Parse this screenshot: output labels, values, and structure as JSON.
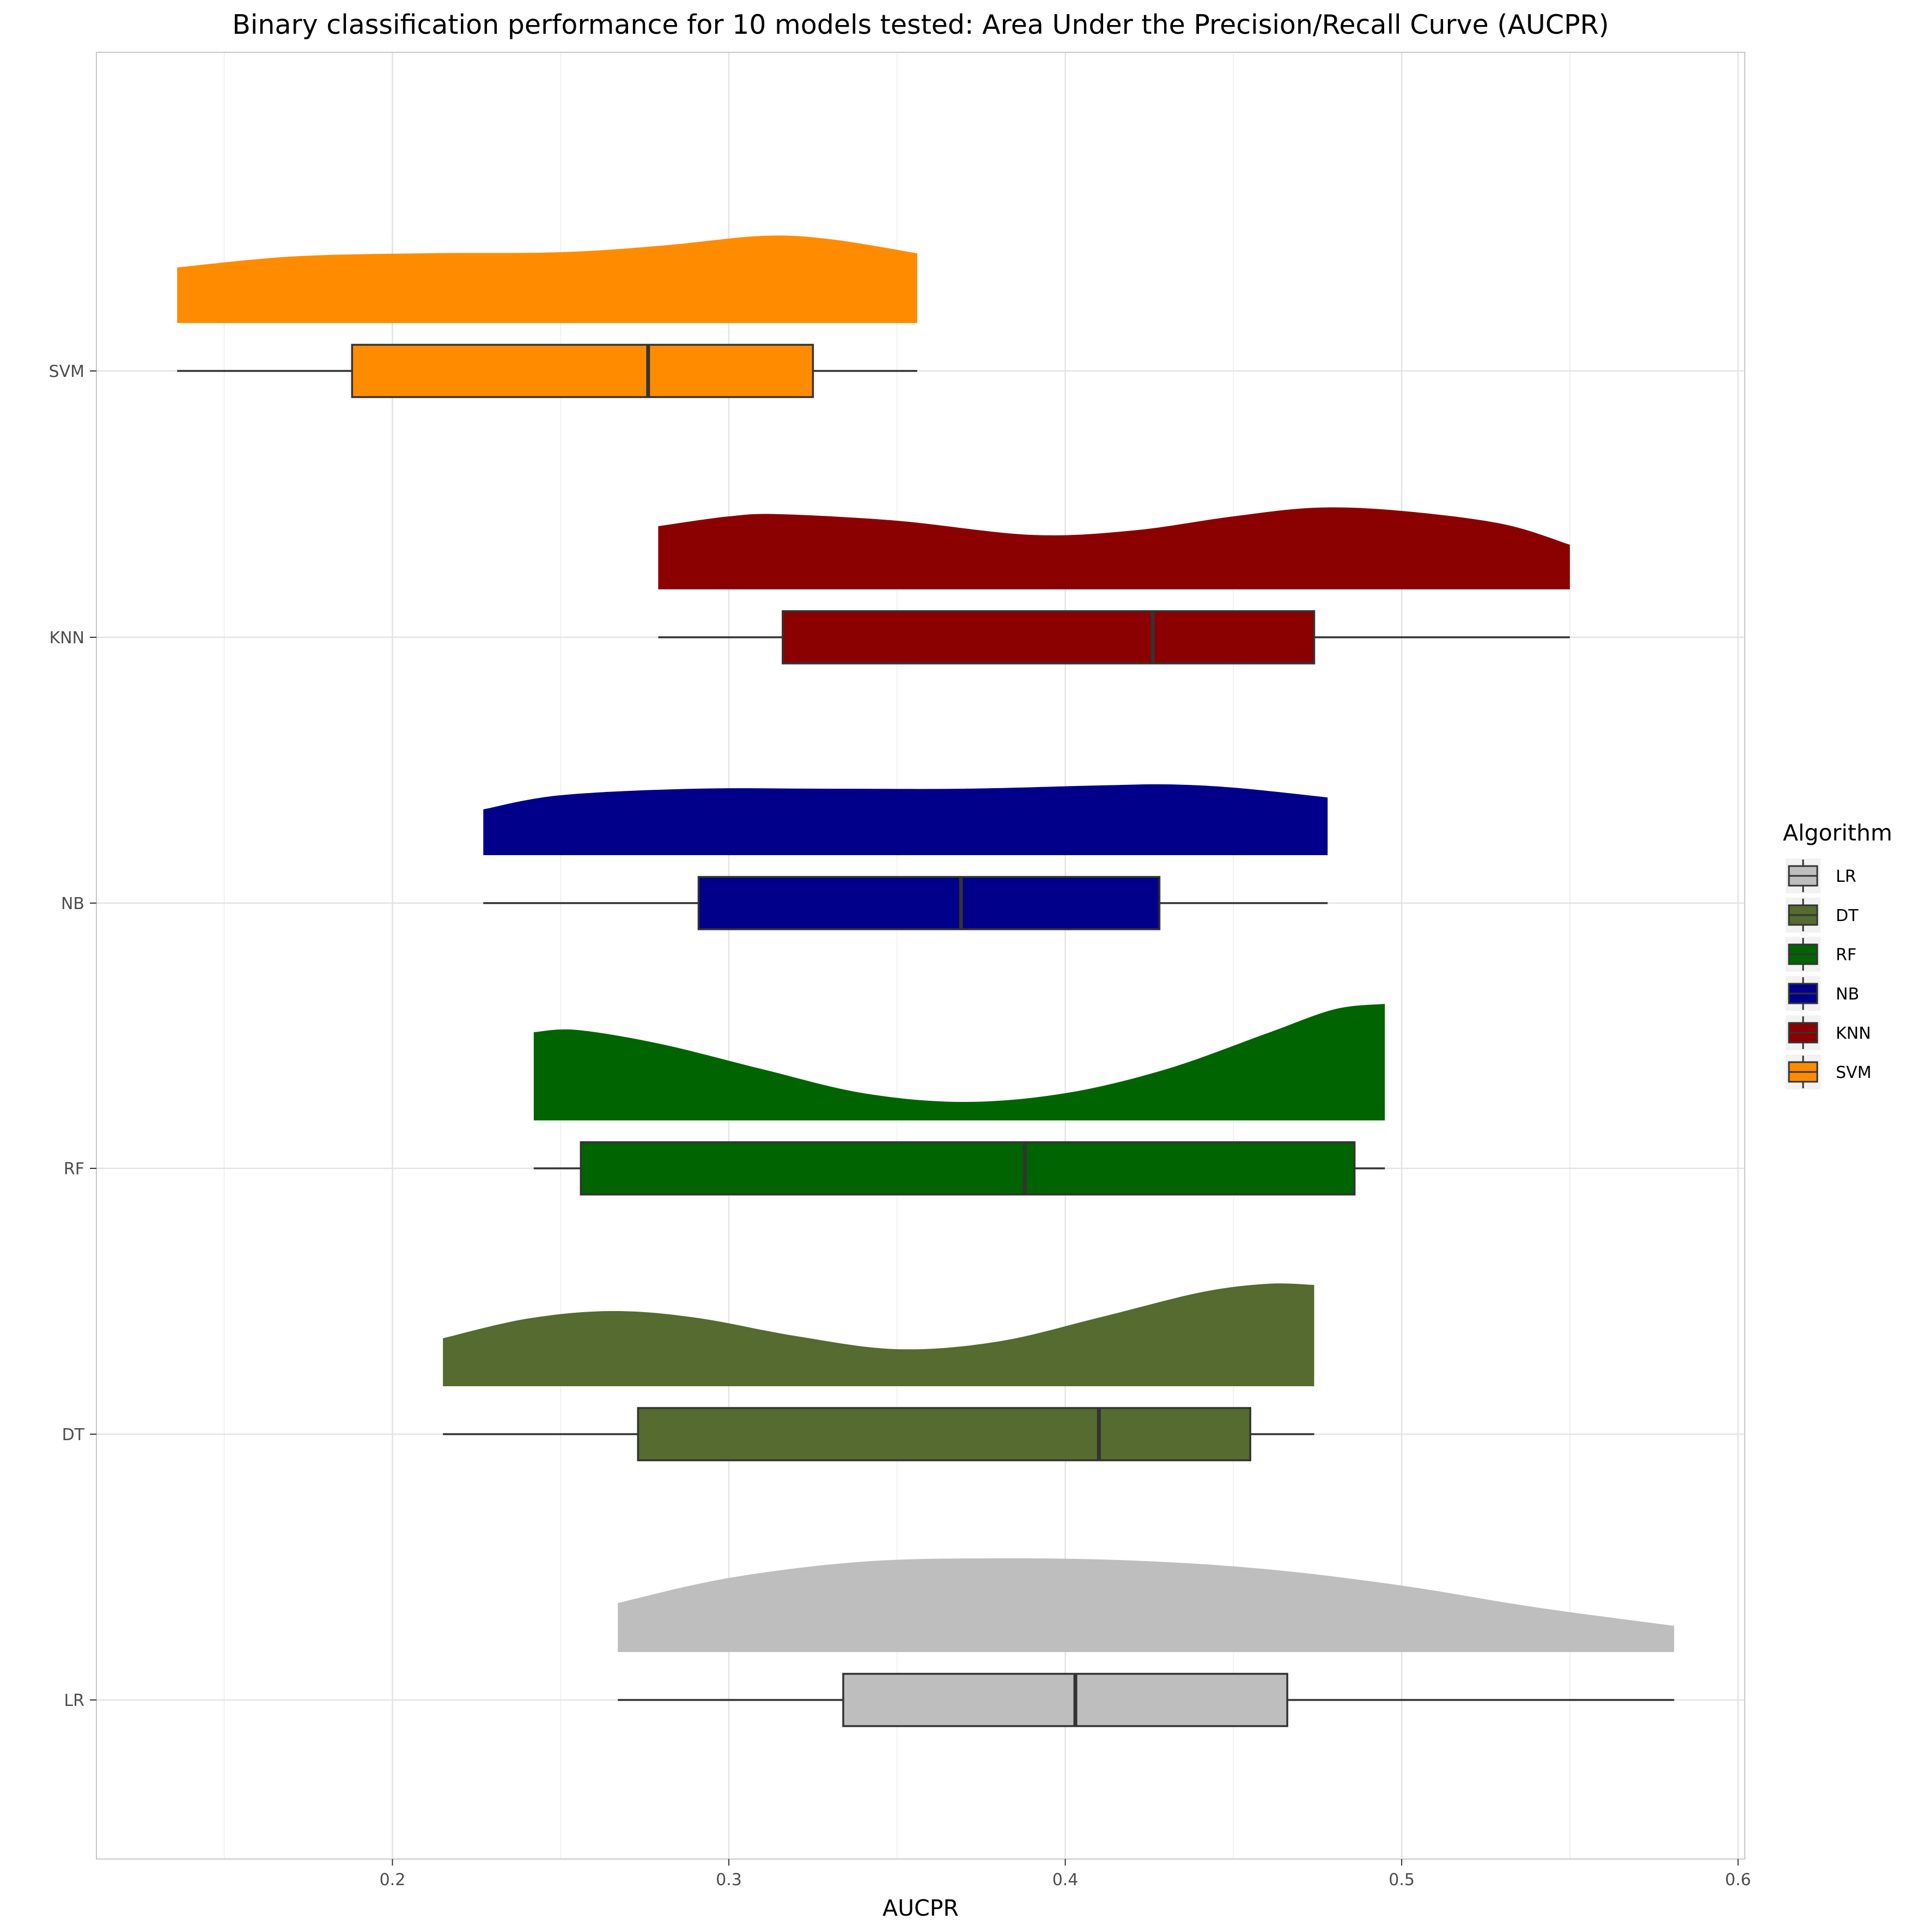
{
  "chart_data": {
    "type": "raincloud",
    "title": "Binary classification performance for 10 models tested: Area Under the Precision/Recall Curve (AUCPR)",
    "xlabel": "AUCPR",
    "ylabel": "",
    "xlim": [
      0.112,
      0.602
    ],
    "x_ticks": [
      0.2,
      0.3,
      0.4,
      0.5,
      0.6
    ],
    "x_tick_labels": [
      "0.2",
      "0.3",
      "0.4",
      "0.5",
      "0.6"
    ],
    "grid": true,
    "legend": {
      "title": "Algorithm",
      "position": "right",
      "entries": [
        "LR",
        "DT",
        "RF",
        "NB",
        "KNN",
        "SVM"
      ]
    },
    "series": [
      {
        "name": "LR",
        "color": "#bebebe",
        "box": {
          "min": 0.267,
          "q1": 0.334,
          "median": 0.403,
          "q3": 0.466,
          "max": 0.581
        },
        "density": [
          [
            0.267,
            0.45
          ],
          [
            0.3,
            0.68
          ],
          [
            0.34,
            0.83
          ],
          [
            0.38,
            0.86
          ],
          [
            0.42,
            0.84
          ],
          [
            0.46,
            0.76
          ],
          [
            0.5,
            0.61
          ],
          [
            0.54,
            0.41
          ],
          [
            0.581,
            0.24
          ]
        ]
      },
      {
        "name": "DT",
        "color": "#556b2f",
        "box": {
          "min": 0.215,
          "q1": 0.273,
          "median": 0.41,
          "q3": 0.455,
          "max": 0.474
        },
        "density": [
          [
            0.215,
            0.44
          ],
          [
            0.24,
            0.62
          ],
          [
            0.265,
            0.69
          ],
          [
            0.29,
            0.63
          ],
          [
            0.32,
            0.46
          ],
          [
            0.35,
            0.34
          ],
          [
            0.38,
            0.41
          ],
          [
            0.41,
            0.63
          ],
          [
            0.44,
            0.86
          ],
          [
            0.46,
            0.94
          ],
          [
            0.474,
            0.93
          ]
        ]
      },
      {
        "name": "RF",
        "color": "#006400",
        "box": {
          "min": 0.242,
          "q1": 0.256,
          "median": 0.388,
          "q3": 0.486,
          "max": 0.495
        },
        "density": [
          [
            0.242,
            0.81
          ],
          [
            0.255,
            0.83
          ],
          [
            0.28,
            0.7
          ],
          [
            0.31,
            0.47
          ],
          [
            0.34,
            0.25
          ],
          [
            0.37,
            0.17
          ],
          [
            0.4,
            0.25
          ],
          [
            0.43,
            0.47
          ],
          [
            0.46,
            0.8
          ],
          [
            0.48,
            1.02
          ],
          [
            0.495,
            1.07
          ]
        ]
      },
      {
        "name": "NB",
        "color": "#00008b",
        "box": {
          "min": 0.227,
          "q1": 0.291,
          "median": 0.369,
          "q3": 0.428,
          "max": 0.478
        },
        "density": [
          [
            0.227,
            0.42
          ],
          [
            0.25,
            0.55
          ],
          [
            0.29,
            0.61
          ],
          [
            0.33,
            0.61
          ],
          [
            0.37,
            0.61
          ],
          [
            0.41,
            0.64
          ],
          [
            0.43,
            0.65
          ],
          [
            0.45,
            0.62
          ],
          [
            0.478,
            0.53
          ]
        ]
      },
      {
        "name": "KNN",
        "color": "#8b0000",
        "box": {
          "min": 0.279,
          "q1": 0.316,
          "median": 0.426,
          "q3": 0.474,
          "max": 0.55
        },
        "density": [
          [
            0.279,
            0.58
          ],
          [
            0.3,
            0.67
          ],
          [
            0.315,
            0.69
          ],
          [
            0.35,
            0.63
          ],
          [
            0.39,
            0.5
          ],
          [
            0.42,
            0.54
          ],
          [
            0.45,
            0.67
          ],
          [
            0.475,
            0.75
          ],
          [
            0.5,
            0.72
          ],
          [
            0.53,
            0.6
          ],
          [
            0.55,
            0.41
          ]
        ]
      },
      {
        "name": "SVM",
        "color": "#ff8c00",
        "box": {
          "min": 0.136,
          "q1": 0.188,
          "median": 0.276,
          "q3": 0.325,
          "max": 0.356
        },
        "density": [
          [
            0.136,
            0.51
          ],
          [
            0.17,
            0.61
          ],
          [
            0.21,
            0.64
          ],
          [
            0.25,
            0.65
          ],
          [
            0.28,
            0.71
          ],
          [
            0.31,
            0.8
          ],
          [
            0.33,
            0.77
          ],
          [
            0.356,
            0.64
          ]
        ]
      }
    ]
  }
}
